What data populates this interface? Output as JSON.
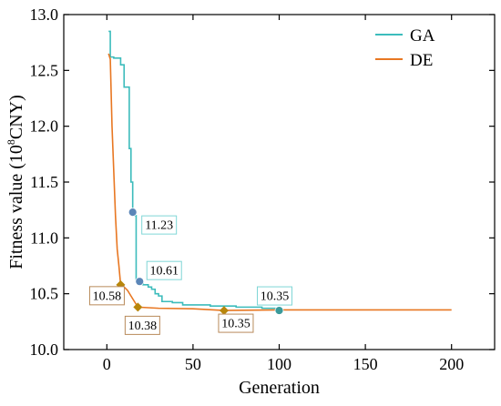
{
  "chart_data": {
    "type": "line",
    "xlabel": "Generation",
    "ylabel": {
      "prefix": "Fitness value  (10",
      "sup": "8",
      "suffix": "CNY)"
    },
    "xlim": [
      -25,
      225
    ],
    "ylim": [
      10.0,
      13.0
    ],
    "xticks": [
      0,
      50,
      100,
      150,
      200
    ],
    "yticks": [
      10.0,
      10.5,
      11.0,
      11.5,
      12.0,
      12.5,
      13.0
    ],
    "xtick_labels": [
      "0",
      "50",
      "100",
      "150",
      "200"
    ],
    "ytick_labels": [
      "10.0",
      "10.5",
      "11.0",
      "11.5",
      "12.0",
      "12.5",
      "13.0"
    ],
    "legend_position": "top-right",
    "series": [
      {
        "name": "GA",
        "color": "#3cbcbc",
        "step": true,
        "points": [
          [
            1,
            12.85
          ],
          [
            2,
            12.62
          ],
          [
            4,
            12.61
          ],
          [
            7,
            12.61
          ],
          [
            8,
            12.55
          ],
          [
            10,
            12.35
          ],
          [
            12,
            12.35
          ],
          [
            13,
            11.8
          ],
          [
            14,
            11.5
          ],
          [
            15,
            11.23
          ],
          [
            16,
            11.2
          ],
          [
            17,
            10.61
          ],
          [
            19,
            10.6
          ],
          [
            21,
            10.58
          ],
          [
            24,
            10.56
          ],
          [
            26,
            10.54
          ],
          [
            28,
            10.5
          ],
          [
            30,
            10.48
          ],
          [
            32,
            10.43
          ],
          [
            38,
            10.42
          ],
          [
            44,
            10.4
          ],
          [
            60,
            10.39
          ],
          [
            75,
            10.38
          ],
          [
            90,
            10.37
          ],
          [
            100,
            10.35
          ]
        ],
        "markers": [
          {
            "x": 15,
            "y": 11.23,
            "label": "11.23",
            "color": "#5b86b8"
          },
          {
            "x": 19,
            "y": 10.61,
            "label": "10.61",
            "color": "#5b86b8"
          },
          {
            "x": 100,
            "y": 10.35,
            "label": "10.35",
            "color": "#3a9a9a"
          }
        ]
      },
      {
        "name": "DE",
        "color": "#e87722",
        "step": false,
        "points": [
          [
            1,
            12.65
          ],
          [
            2,
            12.6
          ],
          [
            3,
            12.0
          ],
          [
            4,
            11.6
          ],
          [
            5,
            11.2
          ],
          [
            6,
            10.9
          ],
          [
            7,
            10.75
          ],
          [
            8,
            10.58
          ],
          [
            10,
            10.56
          ],
          [
            12,
            10.53
          ],
          [
            14,
            10.48
          ],
          [
            16,
            10.43
          ],
          [
            18,
            10.38
          ],
          [
            30,
            10.37
          ],
          [
            50,
            10.365
          ],
          [
            68,
            10.35
          ],
          [
            100,
            10.355
          ],
          [
            200,
            10.355
          ]
        ],
        "markers": [
          {
            "x": 8,
            "y": 10.58,
            "label": "10.58",
            "color": "#b8860b"
          },
          {
            "x": 18,
            "y": 10.38,
            "label": "10.38",
            "color": "#b8860b"
          },
          {
            "x": 68,
            "y": 10.35,
            "label": "10.35",
            "color": "#b8860b"
          }
        ]
      }
    ]
  }
}
